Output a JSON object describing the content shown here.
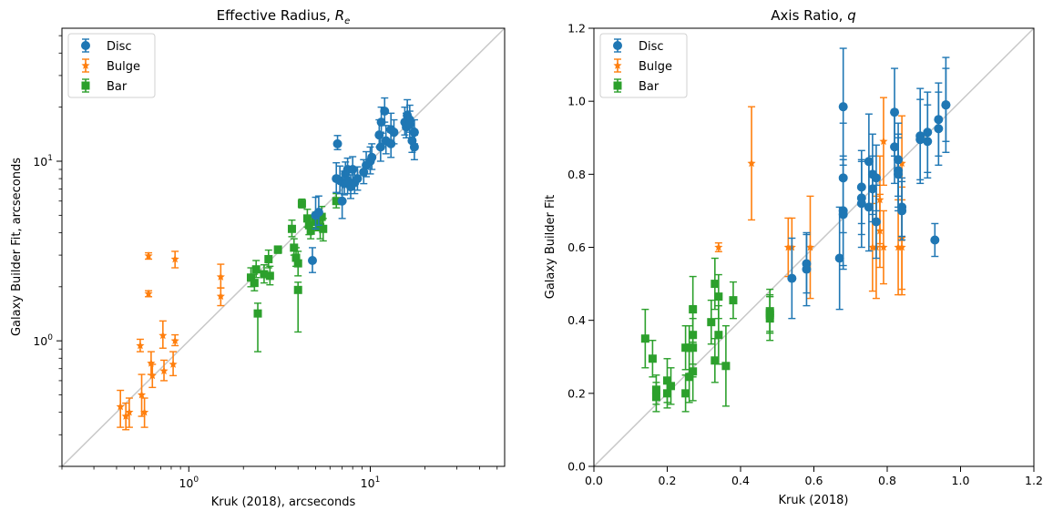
{
  "colors": {
    "disc": "#1f77b4",
    "bulge": "#ff7f0e",
    "bar": "#2ca02c",
    "identity": "#c8c8c8"
  },
  "chart_data": [
    {
      "type": "scatter",
      "title": "Effective Radius, R_e",
      "title_main": "Effective Radius, ",
      "title_sym": "R",
      "title_sub": "e",
      "xlabel": "Kruk (2018), arcseconds",
      "ylabel": "Galaxy Builder Fit, arcseconds",
      "xscale": "log",
      "yscale": "log",
      "xlim": [
        0.2,
        55
      ],
      "ylim": [
        0.2,
        55
      ],
      "xtick_labels": [
        {
          "v": 1,
          "base": "10",
          "exp": "0"
        },
        {
          "v": 10,
          "base": "10",
          "exp": "1"
        }
      ],
      "ytick_labels": [
        {
          "v": 1,
          "base": "10",
          "exp": "0"
        },
        {
          "v": 10,
          "base": "10",
          "exp": "1"
        }
      ],
      "identity_line": true,
      "legend": {
        "loc": "upper left",
        "entries": [
          "Disc",
          "Bulge",
          "Bar"
        ]
      },
      "series": [
        {
          "name": "Disc",
          "marker": "circle",
          "points": [
            [
              6.6,
              12.5,
              0.9,
              1.4
            ],
            [
              11.5,
              16.5,
              2.2,
              3.5
            ],
            [
              12,
              19,
              2.5,
              3.5
            ],
            [
              11.2,
              14,
              2,
              3
            ],
            [
              12.2,
              13,
              2,
              2.8
            ],
            [
              11.4,
              12,
              2,
              2.5
            ],
            [
              13,
              15,
              2.5,
              3.5
            ],
            [
              13.5,
              14.5,
              2,
              2.5
            ],
            [
              13,
              12.5,
              2,
              2
            ],
            [
              15.5,
              16.5,
              2.5,
              3.5
            ],
            [
              16,
              18,
              2.5,
              4
            ],
            [
              16.5,
              17,
              2.5,
              3.5
            ],
            [
              15.8,
              15.5,
              2,
              3
            ],
            [
              17.5,
              14.5,
              2,
              2.5
            ],
            [
              17,
              13,
              1.8,
              2.3
            ],
            [
              17.5,
              12,
              1.8,
              2
            ],
            [
              16.5,
              16,
              2.5,
              3
            ],
            [
              10,
              10,
              1.5,
              2
            ],
            [
              10.2,
              10.5,
              1.5,
              2
            ],
            [
              9.5,
              9.5,
              1.3,
              1.8
            ],
            [
              7.5,
              9,
              1.1,
              1.4
            ],
            [
              7.3,
              8.5,
              1.1,
              1.4
            ],
            [
              8,
              9,
              1.3,
              1.6
            ],
            [
              7.2,
              7.5,
              1,
              1.3
            ],
            [
              7.8,
              7.2,
              1,
              1.2
            ],
            [
              8.2,
              7.6,
              1,
              1.3
            ],
            [
              8.5,
              8,
              1.1,
              1.3
            ],
            [
              9.2,
              8.7,
              1.2,
              1.5
            ],
            [
              6.8,
              7.8,
              1.2,
              1.6
            ],
            [
              7.5,
              7.8,
              1.2,
              1.5
            ],
            [
              6.5,
              8,
              1.3,
              1.8
            ],
            [
              7,
              6,
              1.2,
              1.8
            ],
            [
              5,
              5,
              0.8,
              1.3
            ],
            [
              5.2,
              5.2,
              0.8,
              1.2
            ],
            [
              4.8,
              2.8,
              0.4,
              0.5
            ]
          ]
        },
        {
          "name": "Bulge",
          "marker": "star",
          "points": [
            [
              0.42,
              0.43,
              0.1,
              0.1
            ],
            [
              0.45,
              0.38,
              0.06,
              0.07
            ],
            [
              0.47,
              0.4,
              0.07,
              0.08
            ],
            [
              0.55,
              0.5,
              0.12,
              0.15
            ],
            [
              0.57,
              0.4,
              0.07,
              0.08
            ],
            [
              0.54,
              0.94,
              0.07,
              0.08
            ],
            [
              0.6,
              2.97,
              0.12,
              0.12
            ],
            [
              0.6,
              1.83,
              0.07,
              0.07
            ],
            [
              0.62,
              0.75,
              0.1,
              0.12
            ],
            [
              0.63,
              0.64,
              0.09,
              0.1
            ],
            [
              0.72,
              1.07,
              0.16,
              0.22
            ],
            [
              0.73,
              0.68,
              0.08,
              0.1
            ],
            [
              0.82,
              0.74,
              0.1,
              0.13
            ],
            [
              0.84,
              1.0,
              0.06,
              0.08
            ],
            [
              0.84,
              2.85,
              0.3,
              0.3
            ],
            [
              1.5,
              2.27,
              0.3,
              0.4
            ],
            [
              1.5,
              1.77,
              0.2,
              0.2
            ]
          ]
        },
        {
          "name": "Bar",
          "marker": "square",
          "points": [
            [
              2.2,
              2.25,
              0.25,
              0.3
            ],
            [
              2.35,
              2.5,
              0.25,
              0.3
            ],
            [
              2.3,
              2.1,
              0.2,
              0.25
            ],
            [
              2.4,
              1.42,
              0.55,
              0.2
            ],
            [
              2.6,
              2.35,
              0.25,
              0.3
            ],
            [
              2.75,
              2.85,
              0.3,
              0.35
            ],
            [
              2.8,
              2.3,
              0.25,
              0.3
            ],
            [
              3.1,
              3.22,
              0.15,
              0.15
            ],
            [
              3.7,
              4.2,
              0.4,
              0.5
            ],
            [
              3.8,
              3.3,
              0.3,
              0.4
            ],
            [
              3.9,
              2.9,
              0.3,
              0.4
            ],
            [
              4.0,
              1.92,
              0.8,
              0.2
            ],
            [
              4.0,
              2.7,
              0.4,
              0.45
            ],
            [
              4.2,
              5.8,
              0.3,
              0.35
            ],
            [
              4.5,
              4.8,
              0.5,
              0.6
            ],
            [
              4.6,
              4.4,
              0.5,
              0.5
            ],
            [
              4.7,
              4.1,
              0.4,
              0.5
            ],
            [
              5.0,
              4.6,
              0.5,
              0.6
            ],
            [
              5.3,
              4.3,
              0.6,
              0.7
            ],
            [
              5.4,
              4.9,
              0.7,
              0.7
            ],
            [
              5.5,
              4.2,
              0.6,
              0.6
            ],
            [
              6.5,
              6.0,
              0.5,
              0.6
            ]
          ]
        }
      ]
    },
    {
      "type": "scatter",
      "title": "Axis Ratio, q",
      "title_main": "Axis Ratio, ",
      "title_sym": "q",
      "xlabel": "Kruk (2018)",
      "ylabel": "Galaxy Builder Fit",
      "xscale": "linear",
      "yscale": "linear",
      "xlim": [
        0.0,
        1.2
      ],
      "ylim": [
        0.0,
        1.2
      ],
      "xticks": [
        "0.0",
        "0.2",
        "0.4",
        "0.6",
        "0.8",
        "1.0",
        "1.2"
      ],
      "yticks": [
        "0.0",
        "0.2",
        "0.4",
        "0.6",
        "0.8",
        "1.0",
        "1.2"
      ],
      "identity_line": true,
      "legend": {
        "loc": "upper left",
        "entries": [
          "Disc",
          "Bulge",
          "Bar"
        ]
      },
      "series": [
        {
          "name": "Disc",
          "marker": "circle",
          "points": [
            [
              0.54,
              0.515,
              0.11,
              0.11
            ],
            [
              0.58,
              0.555,
              0.08,
              0.08
            ],
            [
              0.58,
              0.54,
              0.1,
              0.1
            ],
            [
              0.67,
              0.57,
              0.14,
              0.14
            ],
            [
              0.68,
              0.985,
              0.16,
              0.16
            ],
            [
              0.68,
              0.79,
              0.15,
              0.15
            ],
            [
              0.68,
              0.7,
              0.15,
              0.15
            ],
            [
              0.68,
              0.69,
              0.15,
              0.15
            ],
            [
              0.73,
              0.765,
              0.1,
              0.1
            ],
            [
              0.73,
              0.735,
              0.1,
              0.1
            ],
            [
              0.73,
              0.72,
              0.12,
              0.12
            ],
            [
              0.75,
              0.835,
              0.13,
              0.13
            ],
            [
              0.75,
              0.71,
              0.12,
              0.12
            ],
            [
              0.76,
              0.8,
              0.11,
              0.11
            ],
            [
              0.76,
              0.76,
              0.09,
              0.09
            ],
            [
              0.77,
              0.79,
              0.09,
              0.09
            ],
            [
              0.77,
              0.67,
              0.1,
              0.1
            ],
            [
              0.82,
              0.97,
              0.12,
              0.12
            ],
            [
              0.82,
              0.875,
              0.1,
              0.1
            ],
            [
              0.83,
              0.84,
              0.1,
              0.1
            ],
            [
              0.83,
              0.81,
              0.1,
              0.1
            ],
            [
              0.83,
              0.8,
              0.1,
              0.1
            ],
            [
              0.84,
              0.71,
              0.08,
              0.08
            ],
            [
              0.84,
              0.7,
              0.08,
              0.08
            ],
            [
              0.89,
              0.905,
              0.13,
              0.13
            ],
            [
              0.89,
              0.895,
              0.11,
              0.11
            ],
            [
              0.91,
              0.915,
              0.11,
              0.11
            ],
            [
              0.91,
              0.89,
              0.1,
              0.1
            ],
            [
              0.93,
              0.62,
              0.045,
              0.045
            ],
            [
              0.94,
              0.95,
              0.1,
              0.1
            ],
            [
              0.94,
              0.925,
              0.1,
              0.1
            ],
            [
              0.96,
              0.99,
              0.13,
              0.13
            ],
            [
              0.96,
              0.99,
              0.1,
              0.1
            ]
          ]
        },
        {
          "name": "Bulge",
          "marker": "star",
          "points": [
            [
              0.34,
              0.6,
              0.012,
              0.012
            ],
            [
              0.43,
              0.83,
              0.155,
              0.155
            ],
            [
              0.53,
              0.6,
              0.08,
              0.08
            ],
            [
              0.54,
              0.6,
              0.08,
              0.08
            ],
            [
              0.59,
              0.6,
              0.14,
              0.14
            ],
            [
              0.76,
              0.6,
              0.12,
              0.12
            ],
            [
              0.77,
              0.6,
              0.14,
              0.14
            ],
            [
              0.78,
              0.645,
              0.1,
              0.1
            ],
            [
              0.78,
              0.73,
              0.12,
              0.12
            ],
            [
              0.79,
              0.6,
              0.1,
              0.1
            ],
            [
              0.79,
              0.89,
              0.12,
              0.12
            ],
            [
              0.83,
              0.6,
              0.13,
              0.13
            ],
            [
              0.84,
              0.6,
              0.13,
              0.13
            ],
            [
              0.84,
              0.625,
              0.14,
              0.14
            ],
            [
              0.84,
              0.83,
              0.13,
              0.13
            ]
          ]
        },
        {
          "name": "Bar",
          "marker": "square",
          "points": [
            [
              0.14,
              0.35,
              0.08,
              0.08
            ],
            [
              0.16,
              0.295,
              0.05,
              0.05
            ],
            [
              0.17,
              0.21,
              0.04,
              0.04
            ],
            [
              0.17,
              0.19,
              0.04,
              0.04
            ],
            [
              0.2,
              0.235,
              0.06,
              0.06
            ],
            [
              0.2,
              0.2,
              0.04,
              0.04
            ],
            [
              0.21,
              0.22,
              0.05,
              0.05
            ],
            [
              0.25,
              0.325,
              0.06,
              0.06
            ],
            [
              0.25,
              0.2,
              0.05,
              0.05
            ],
            [
              0.26,
              0.325,
              0.06,
              0.06
            ],
            [
              0.26,
              0.245,
              0.07,
              0.07
            ],
            [
              0.27,
              0.43,
              0.09,
              0.09
            ],
            [
              0.27,
              0.36,
              0.08,
              0.08
            ],
            [
              0.27,
              0.26,
              0.08,
              0.08
            ],
            [
              0.27,
              0.325,
              0.08,
              0.08
            ],
            [
              0.32,
              0.395,
              0.06,
              0.06
            ],
            [
              0.33,
              0.5,
              0.07,
              0.07
            ],
            [
              0.33,
              0.29,
              0.06,
              0.06
            ],
            [
              0.34,
              0.465,
              0.06,
              0.06
            ],
            [
              0.34,
              0.36,
              0.08,
              0.08
            ],
            [
              0.36,
              0.275,
              0.11,
              0.11
            ],
            [
              0.38,
              0.455,
              0.05,
              0.05
            ],
            [
              0.48,
              0.425,
              0.06,
              0.06
            ],
            [
              0.48,
              0.42,
              0.05,
              0.05
            ],
            [
              0.48,
              0.415,
              0.05,
              0.05
            ],
            [
              0.48,
              0.405,
              0.06,
              0.06
            ]
          ]
        }
      ]
    }
  ]
}
